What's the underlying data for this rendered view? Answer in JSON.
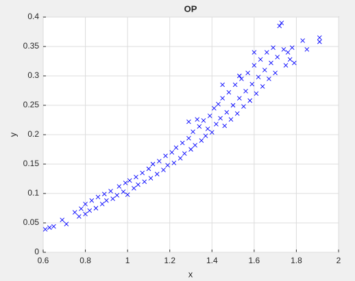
{
  "chart_data": {
    "type": "scatter",
    "title": "OP",
    "x_label": "x",
    "y_label": "y",
    "color": "#0000ff",
    "grid": true,
    "xlim": [
      0.6,
      2
    ],
    "xticks": [
      0.6,
      0.8,
      1,
      1.2,
      1.4,
      1.6,
      1.8,
      2
    ],
    "ylim": [
      0,
      0.4
    ],
    "yticks": [
      0,
      0.05,
      0.1,
      0.15,
      0.2,
      0.25,
      0.3,
      0.35,
      0.4
    ],
    "x": [
      0.61,
      0.63,
      0.65,
      0.69,
      0.71,
      0.75,
      0.77,
      0.78,
      0.8,
      0.8,
      0.82,
      0.83,
      0.85,
      0.86,
      0.88,
      0.89,
      0.9,
      0.92,
      0.93,
      0.95,
      0.96,
      0.98,
      0.99,
      1.0,
      1.01,
      1.03,
      1.04,
      1.05,
      1.07,
      1.08,
      1.1,
      1.11,
      1.12,
      1.14,
      1.15,
      1.17,
      1.18,
      1.19,
      1.21,
      1.22,
      1.23,
      1.25,
      1.26,
      1.27,
      1.29,
      1.3,
      1.31,
      1.32,
      1.34,
      1.35,
      1.36,
      1.37,
      1.38,
      1.39,
      1.4,
      1.41,
      1.42,
      1.43,
      1.44,
      1.45,
      1.46,
      1.47,
      1.48,
      1.49,
      1.5,
      1.51,
      1.52,
      1.53,
      1.54,
      1.55,
      1.56,
      1.57,
      1.58,
      1.59,
      1.6,
      1.61,
      1.62,
      1.63,
      1.64,
      1.65,
      1.66,
      1.67,
      1.68,
      1.69,
      1.7,
      1.71,
      1.72,
      1.73,
      1.74,
      1.75,
      1.76,
      1.77,
      1.78,
      1.79,
      1.83,
      1.85,
      1.91,
      1.91,
      1.29,
      1.33,
      1.45,
      1.53,
      1.6
    ],
    "y": [
      0.039,
      0.042,
      0.044,
      0.055,
      0.048,
      0.068,
      0.061,
      0.074,
      0.065,
      0.082,
      0.071,
      0.088,
      0.075,
      0.094,
      0.082,
      0.099,
      0.088,
      0.104,
      0.091,
      0.097,
      0.112,
      0.103,
      0.118,
      0.098,
      0.122,
      0.109,
      0.128,
      0.115,
      0.135,
      0.12,
      0.142,
      0.126,
      0.15,
      0.133,
      0.155,
      0.14,
      0.164,
      0.148,
      0.17,
      0.152,
      0.178,
      0.16,
      0.186,
      0.168,
      0.194,
      0.175,
      0.205,
      0.182,
      0.214,
      0.19,
      0.224,
      0.198,
      0.21,
      0.232,
      0.204,
      0.245,
      0.218,
      0.252,
      0.228,
      0.262,
      0.215,
      0.238,
      0.272,
      0.226,
      0.25,
      0.285,
      0.236,
      0.262,
      0.295,
      0.248,
      0.274,
      0.305,
      0.258,
      0.286,
      0.318,
      0.27,
      0.298,
      0.328,
      0.282,
      0.31,
      0.34,
      0.295,
      0.322,
      0.348,
      0.305,
      0.332,
      0.385,
      0.39,
      0.345,
      0.318,
      0.34,
      0.328,
      0.348,
      0.322,
      0.36,
      0.345,
      0.358,
      0.365,
      0.222,
      0.226,
      0.285,
      0.3,
      0.34
    ]
  }
}
